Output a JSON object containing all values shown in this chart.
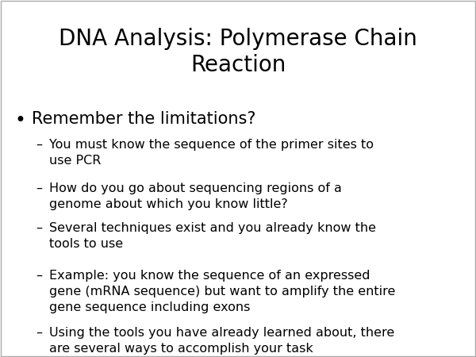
{
  "title": "DNA Analysis: Polymerase Chain\nReaction",
  "background_color": "#ffffff",
  "title_fontsize": 20,
  "title_color": "#000000",
  "bullet_main": "Remember the limitations?",
  "bullet_main_fontsize": 15,
  "sub_bullets": [
    "You must know the sequence of the primer sites to\nuse PCR",
    "How do you go about sequencing regions of a\ngenome about which you know little?",
    "Several techniques exist and you already know the\ntools to use",
    "Example: you know the sequence of an expressed\ngene (mRNA sequence) but want to amplify the entire\ngene sequence including exons",
    "Using the tools you have already learned about, there\nare several ways to accomplish your task"
  ],
  "sub_bullet_fontsize": 11.5,
  "text_color": "#000000",
  "border_color": "#aaaaaa"
}
